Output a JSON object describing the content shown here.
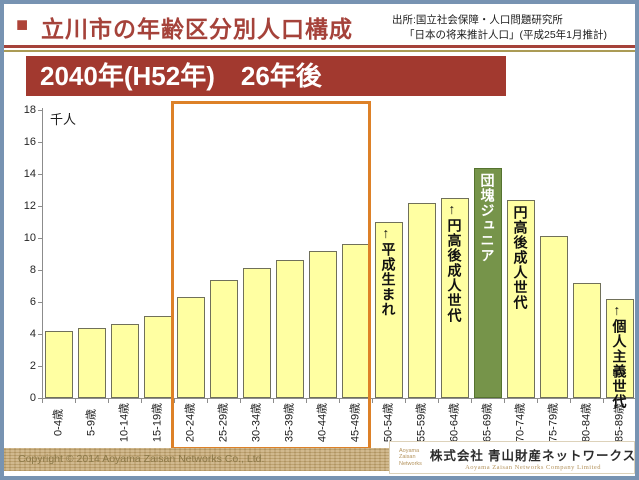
{
  "header": {
    "bullet": "■",
    "title": "立川市の年齢区分別人口構成",
    "source_line1": "出所:国立社会保障・人口問題研究所",
    "source_line2": "「日本の将来推計人口」(平成25年1月推計)"
  },
  "banner": {
    "label": "2040年(H52年)　26年後"
  },
  "chart_data": {
    "type": "bar",
    "title": "2040年(H52年)　26年後",
    "unit_label": "千人",
    "xlabel": "",
    "ylabel": "千人",
    "ylim": [
      0,
      18
    ],
    "ytick_step": 2,
    "grid": false,
    "legend": "none",
    "categories": [
      "0-4歳",
      "5-9歳",
      "10-14歳",
      "15-19歳",
      "20-24歳",
      "25-29歳",
      "30-34歳",
      "35-39歳",
      "40-44歳",
      "45-49歳",
      "50-54歳",
      "55-59歳",
      "60-64歳",
      "65-69歳",
      "70-74歳",
      "75-79歳",
      "80-84歳",
      "85-89歳"
    ],
    "values": [
      4.2,
      4.4,
      4.6,
      5.1,
      6.3,
      7.4,
      8.1,
      8.6,
      9.2,
      9.6,
      11.0,
      12.2,
      12.5,
      14.4,
      12.4,
      10.1,
      7.2,
      6.2
    ],
    "bar_color": "#ffffa2",
    "bar_border_color": "#70705a",
    "highlight_bar": {
      "index": 13,
      "color": "#76944a",
      "border_color": "#55732f"
    },
    "highlight_box": {
      "from_index": 4,
      "to_index": 9,
      "border_color": "#dd8128"
    },
    "annotations": [
      {
        "index": 10,
        "text": "←平成生まれ",
        "style": "dark"
      },
      {
        "index": 12,
        "text": "←円高後成人世代",
        "style": "dark"
      },
      {
        "index": 13,
        "text": "団塊ジュニア",
        "style": "light"
      },
      {
        "index": 14,
        "text": "円高後成人世代",
        "style": "dark"
      },
      {
        "index": 17,
        "text": "←個人主義世代",
        "style": "dark"
      }
    ]
  },
  "footer": {
    "copyright": "Copyright © 2014 Aoyama Zaisan Networks Co., Ltd.",
    "logo_lines": [
      "Aoyama",
      "Zaisan",
      "Networks"
    ],
    "company_name": "株式会社 青山財産ネットワークス",
    "company_name_en": "Aoyama Zaisan Networks Company Limited"
  },
  "colors": {
    "frame_blue": "#7793b2",
    "brand_red": "#a5423a",
    "banner_red": "#a2392f",
    "divider_gold": "#ab9b55",
    "band_tan": "#c9ac7a",
    "highlight_orange": "#dd8128",
    "bar_yellow": "#ffffa2",
    "bar_green": "#76944a"
  }
}
